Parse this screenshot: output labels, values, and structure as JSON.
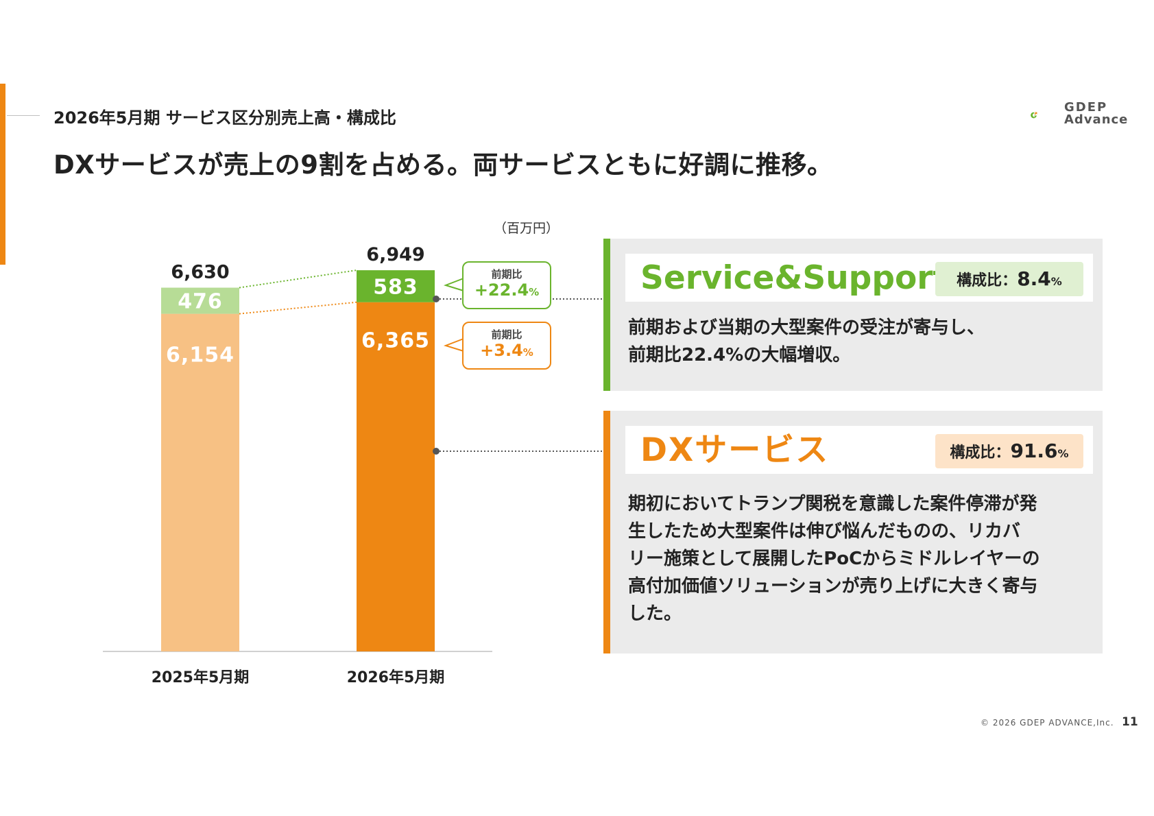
{
  "header": {
    "subtitle": "2026年5月期 サービス区分別売上高・構成比",
    "headline": "DXサービスが売上の9割を占める。両サービスともに好調に推移。"
  },
  "logo": {
    "line1": "GDEP",
    "line2": "Advance"
  },
  "colors": {
    "orange": "#ee8713",
    "orange_light": "#f7c184",
    "green": "#6ab42d",
    "green_light": "#b7dc96"
  },
  "chart_data": {
    "type": "bar",
    "stacked": true,
    "unit": "（百万円）",
    "categories": [
      "2025年5月期",
      "2026年5月期"
    ],
    "series": [
      {
        "name": "DXサービス",
        "values": [
          6154,
          6365
        ],
        "labels": [
          "6,154",
          "6,365"
        ]
      },
      {
        "name": "Service&Support",
        "values": [
          476,
          583
        ],
        "labels": [
          "476",
          "583"
        ]
      }
    ],
    "totals": [
      6630,
      6949
    ],
    "total_labels": [
      "6,630",
      "6,949"
    ],
    "ylim": [
      0,
      7000
    ]
  },
  "callouts": {
    "ss": {
      "label": "前期比",
      "value": "+22.4",
      "unit": "%"
    },
    "dx": {
      "label": "前期比",
      "value": "+3.4",
      "unit": "%"
    }
  },
  "panels": {
    "ss": {
      "title": "Service&Support",
      "ratio_label": "構成比：",
      "ratio_value": "8.4",
      "ratio_unit": "%",
      "body": "前期および当期の大型案件の受注が寄与し、\n前期比22.4%の大幅増収。"
    },
    "dx": {
      "title": "DXサービス",
      "ratio_label": "構成比：",
      "ratio_value": "91.6",
      "ratio_unit": "%",
      "body": "期初においてトランプ関税を意識した案件停滞が発\n生したため大型案件は伸び悩んだものの、リカバ\nリー施策として展開したPoCからミドルレイヤーの\n高付加価値ソリューションが売り上げに大きく寄与\nした。"
    }
  },
  "footer": {
    "copyright": "© 2026 GDEP ADVANCE,Inc.",
    "page": "11"
  }
}
